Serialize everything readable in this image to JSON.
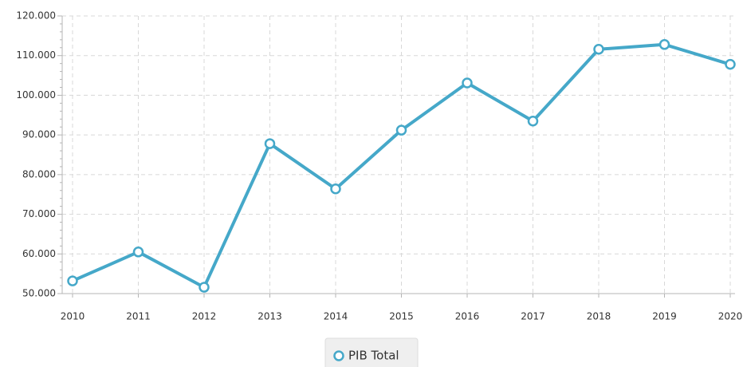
{
  "chart_data": {
    "type": "line",
    "categories": [
      "2010",
      "2011",
      "2012",
      "2013",
      "2014",
      "2015",
      "2016",
      "2017",
      "2018",
      "2019",
      "2020"
    ],
    "series": [
      {
        "name": "PIB Total",
        "color": "#45a8c9",
        "values": [
          53200,
          60500,
          51600,
          87800,
          76400,
          91200,
          103100,
          93500,
          111600,
          112800,
          107800
        ]
      }
    ],
    "ylim": [
      50000,
      120000
    ],
    "yticks": [
      {
        "value": 50000,
        "label": "50.000"
      },
      {
        "value": 60000,
        "label": "60.000"
      },
      {
        "value": 70000,
        "label": "70.000"
      },
      {
        "value": 80000,
        "label": "80.000"
      },
      {
        "value": 90000,
        "label": "90.000"
      },
      {
        "value": 100000,
        "label": "100.000"
      },
      {
        "value": 110000,
        "label": "110.000"
      },
      {
        "value": 120000,
        "label": "120.000"
      }
    ],
    "grid": true,
    "legend": "bottom"
  }
}
